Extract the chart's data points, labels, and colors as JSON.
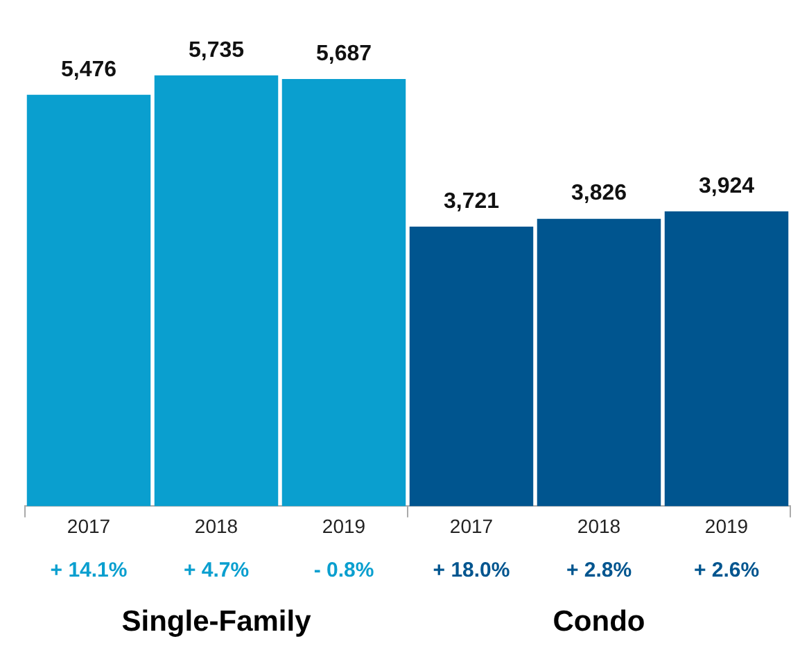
{
  "chart_data": {
    "type": "bar",
    "categories": [
      "2017",
      "2018",
      "2019",
      "2017",
      "2018",
      "2019"
    ],
    "values": [
      5476,
      5735,
      5687,
      3721,
      3826,
      3924
    ],
    "colors": [
      "#0a9fcf",
      "#0a9fcf",
      "#0a9fcf",
      "#00558f",
      "#00558f",
      "#00558f"
    ],
    "value_labels": [
      "5,476",
      "5,735",
      "5,687",
      "3,721",
      "3,826",
      "3,924"
    ],
    "annotations": [
      "+ 14.1%",
      "+ 4.7%",
      "- 0.8%",
      "+ 18.0%",
      "+ 2.8%",
      "+ 2.6%",
      "Single-Family",
      "Condo"
    ],
    "grid": false,
    "legend": false
  }
}
